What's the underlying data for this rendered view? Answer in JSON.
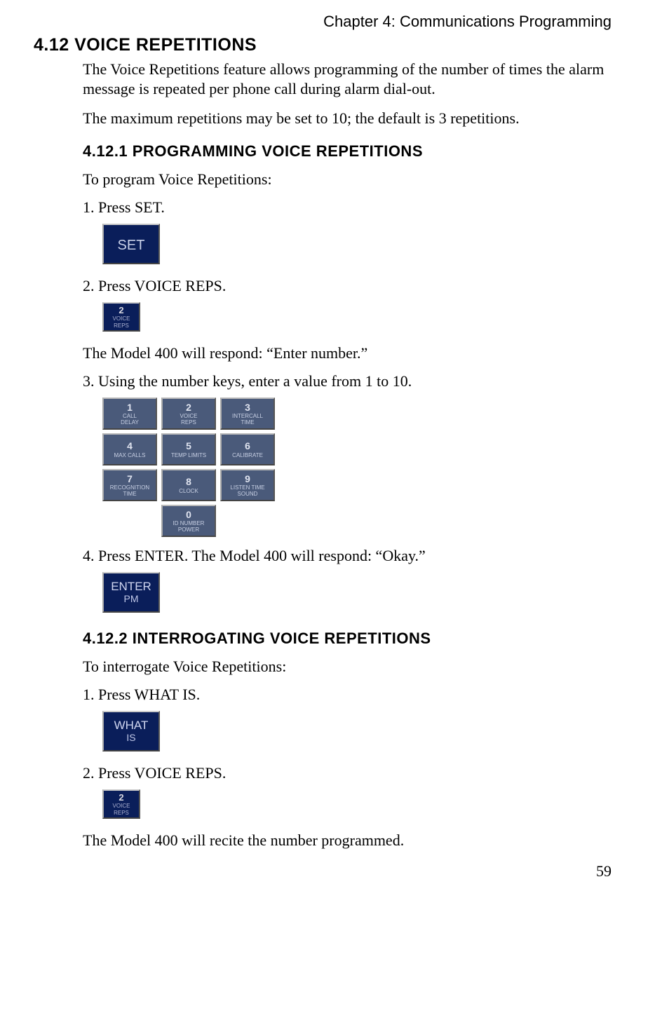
{
  "chapter_header": "Chapter 4: Communications Programming",
  "section": {
    "number": "4.12",
    "title": "VOICE REPETITIONS"
  },
  "intro_paragraphs": [
    "The Voice Repetitions feature allows programming of the number of times the alarm message is repeated per phone call during alarm dial-out.",
    "The maximum repetitions may be set to 10; the default is 3 repetitions."
  ],
  "subsection1": {
    "number": "4.12.1",
    "title": "PROGRAMMING VOICE REPETITIONS",
    "lead": "To program Voice Repetitions:",
    "steps": {
      "s1": "1. Press SET.",
      "s2": "2. Press VOICE REPS.",
      "s2_response": "The Model 400 will respond: “Enter number.”",
      "s3": "3. Using the number keys, enter a value from 1 to 10.",
      "s4": "4. Press ENTER. The Model 400 will respond: “Okay.”"
    }
  },
  "subsection2": {
    "number": "4.12.2",
    "title": "INTERROGATING VOICE REPETITIONS",
    "lead": "To interrogate Voice Repetitions:",
    "steps": {
      "s1": "1. Press WHAT IS.",
      "s2": "2. Press VOICE REPS.",
      "result": "The Model 400 will recite the number programmed."
    }
  },
  "keys": {
    "set": "SET",
    "voice_reps": {
      "num": "2",
      "l1": "VOICE",
      "l2": "REPS"
    },
    "what_is": {
      "l1": "WHAT",
      "l2": "IS"
    },
    "enter": {
      "l1": "ENTER",
      "l2": "PM"
    }
  },
  "keypad": [
    [
      {
        "num": "1",
        "l1": "CALL",
        "l2": "DELAY"
      },
      {
        "num": "2",
        "l1": "VOICE",
        "l2": "REPS"
      },
      {
        "num": "3",
        "l1": "INTERCALL",
        "l2": "TIME"
      }
    ],
    [
      {
        "num": "4",
        "l1": "MAX CALLS",
        "l2": ""
      },
      {
        "num": "5",
        "l1": "TEMP LIMITS",
        "l2": ""
      },
      {
        "num": "6",
        "l1": "CALIBRATE",
        "l2": ""
      }
    ],
    [
      {
        "num": "7",
        "l1": "RECOGNITION",
        "l2": "TIME"
      },
      {
        "num": "8",
        "l1": "CLOCK",
        "l2": ""
      },
      {
        "num": "9",
        "l1": "LISTEN TIME",
        "l2": "SOUND"
      }
    ],
    [
      {
        "num": "0",
        "l1": "ID NUMBER",
        "l2": "POWER"
      }
    ]
  ],
  "colors": {
    "key_bg": "#0a1e5a",
    "keypad_bg": "#4a5a7a",
    "key_text": "#c8d0e8",
    "page_bg": "#ffffff",
    "text": "#000000"
  },
  "page_number": "59"
}
